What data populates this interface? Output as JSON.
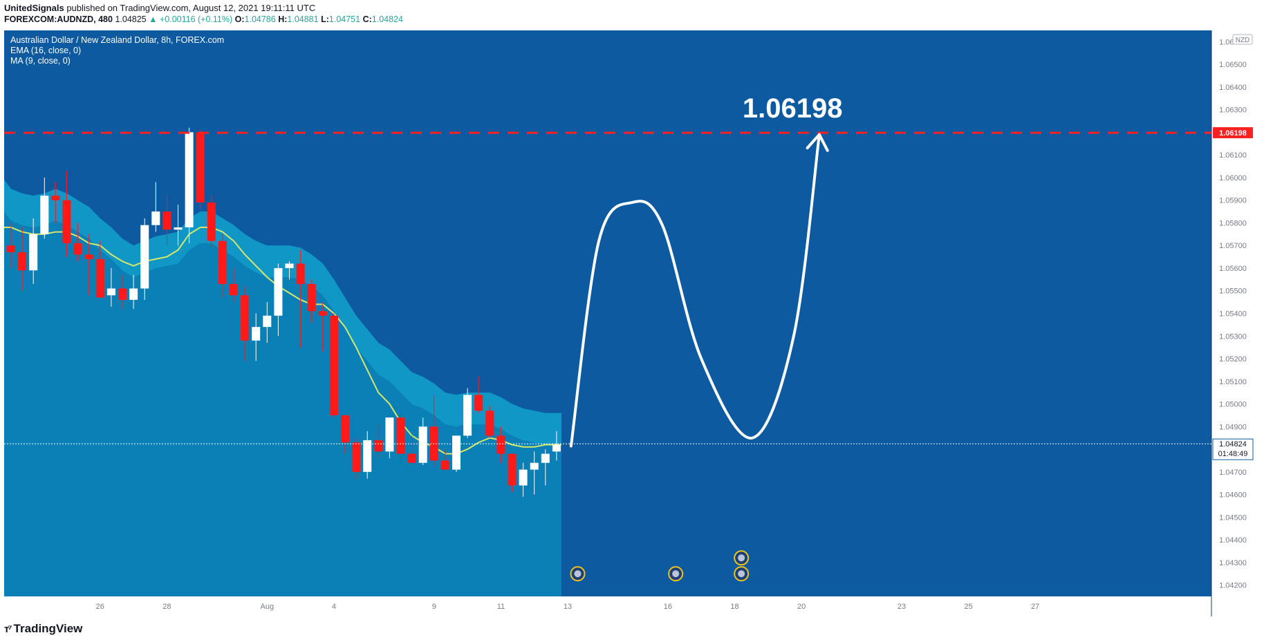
{
  "header": {
    "publisher": "UnitedSignals",
    "published_text": "published on TradingView.com, August 12, 2021 19:11:11 UTC",
    "symbol": "FOREXCOM:AUDNZD, 480",
    "last": "1.04825",
    "change": "+0.00116 (+0.11%)",
    "o_label": "O:",
    "o": "1.04786",
    "h_label": "H:",
    "h": "1.04881",
    "l_label": "L:",
    "l": "1.04751",
    "c_label": "C:",
    "c": "1.04824"
  },
  "legend": {
    "title": "Australian Dollar / New Zealand Dollar, 8h, FOREX.com",
    "ema": "EMA (16, close, 0)",
    "ma": "MA (9, close, 0)"
  },
  "currency_badge": "NZD",
  "target_label": "1.06198",
  "target_badge": "1.06198",
  "price_badge": "1.04824",
  "countdown": "01:48:49",
  "logo_text": "TradingView",
  "colors": {
    "background": "#0d5aa1",
    "area_fill": "#0a80b6",
    "band_fill": "#1197c5",
    "ema_line": "#d6e86a",
    "up_candle": "#ffffff",
    "down_candle": "#ff1a1a",
    "target_line": "#ff2020",
    "projection": "#ffffff"
  },
  "chart_data": {
    "type": "candlestick",
    "y_axis": {
      "min": 1.0415,
      "max": 1.0665,
      "ticks": [
        "1.04200",
        "1.04300",
        "1.04400",
        "1.04500",
        "1.04600",
        "1.04700",
        "1.04800",
        "1.04900",
        "1.05000",
        "1.05100",
        "1.05200",
        "1.05300",
        "1.05400",
        "1.05500",
        "1.05600",
        "1.05700",
        "1.05800",
        "1.05900",
        "1.06000",
        "1.06100",
        "1.06200",
        "1.06300",
        "1.06400",
        "1.06500",
        "1.06600"
      ]
    },
    "x_ticks": [
      {
        "label": "23",
        "bar": -1
      },
      {
        "label": "26",
        "bar": 8
      },
      {
        "label": "28",
        "bar": 14
      },
      {
        "label": "Aug",
        "bar": 23
      },
      {
        "label": "4",
        "bar": 29
      },
      {
        "label": "9",
        "bar": 38
      },
      {
        "label": "11",
        "bar": 44
      },
      {
        "label": "13",
        "bar": 50
      },
      {
        "label": "16",
        "bar": 59
      },
      {
        "label": "18",
        "bar": 65
      },
      {
        "label": "20",
        "bar": 71
      },
      {
        "label": "23",
        "bar": 80
      },
      {
        "label": "25",
        "bar": 86
      },
      {
        "label": "27",
        "bar": 92
      }
    ],
    "candles": [
      {
        "o": 1.057,
        "h": 1.058,
        "l": 1.056,
        "c": 1.0567
      },
      {
        "o": 1.0567,
        "h": 1.0578,
        "l": 1.055,
        "c": 1.0559
      },
      {
        "o": 1.0559,
        "h": 1.0582,
        "l": 1.0553,
        "c": 1.0575
      },
      {
        "o": 1.0575,
        "h": 1.06,
        "l": 1.0573,
        "c": 1.0592
      },
      {
        "o": 1.0592,
        "h": 1.0598,
        "l": 1.058,
        "c": 1.059
      },
      {
        "o": 1.059,
        "h": 1.0603,
        "l": 1.0565,
        "c": 1.0571
      },
      {
        "o": 1.0571,
        "h": 1.058,
        "l": 1.0563,
        "c": 1.0566
      },
      {
        "o": 1.0566,
        "h": 1.0575,
        "l": 1.0548,
        "c": 1.0564
      },
      {
        "o": 1.0564,
        "h": 1.0572,
        "l": 1.0548,
        "c": 1.0547
      },
      {
        "o": 1.0548,
        "h": 1.056,
        "l": 1.0543,
        "c": 1.0551
      },
      {
        "o": 1.0551,
        "h": 1.0557,
        "l": 1.0542,
        "c": 1.0546
      },
      {
        "o": 1.0546,
        "h": 1.0557,
        "l": 1.0542,
        "c": 1.0551
      },
      {
        "o": 1.0551,
        "h": 1.0582,
        "l": 1.0546,
        "c": 1.0579
      },
      {
        "o": 1.0579,
        "h": 1.0598,
        "l": 1.0576,
        "c": 1.0585
      },
      {
        "o": 1.0585,
        "h": 1.0592,
        "l": 1.057,
        "c": 1.0577
      },
      {
        "o": 1.0577,
        "h": 1.0588,
        "l": 1.057,
        "c": 1.0578
      },
      {
        "o": 1.0578,
        "h": 1.0622,
        "l": 1.0571,
        "c": 1.062
      },
      {
        "o": 1.062,
        "h": 1.0621,
        "l": 1.0586,
        "c": 1.0589
      },
      {
        "o": 1.0589,
        "h": 1.0592,
        "l": 1.0569,
        "c": 1.0572
      },
      {
        "o": 1.0572,
        "h": 1.0575,
        "l": 1.0547,
        "c": 1.0553
      },
      {
        "o": 1.0553,
        "h": 1.056,
        "l": 1.0545,
        "c": 1.0548
      },
      {
        "o": 1.0548,
        "h": 1.0552,
        "l": 1.0519,
        "c": 1.0528
      },
      {
        "o": 1.0528,
        "h": 1.054,
        "l": 1.0519,
        "c": 1.0534
      },
      {
        "o": 1.0534,
        "h": 1.0545,
        "l": 1.0527,
        "c": 1.0539
      },
      {
        "o": 1.0539,
        "h": 1.0562,
        "l": 1.053,
        "c": 1.056
      },
      {
        "o": 1.056,
        "h": 1.0563,
        "l": 1.0555,
        "c": 1.0562
      },
      {
        "o": 1.0562,
        "h": 1.0568,
        "l": 1.0525,
        "c": 1.0553
      },
      {
        "o": 1.0553,
        "h": 1.0555,
        "l": 1.0536,
        "c": 1.0541
      },
      {
        "o": 1.0541,
        "h": 1.0545,
        "l": 1.0523,
        "c": 1.0539
      },
      {
        "o": 1.0539,
        "h": 1.054,
        "l": 1.0494,
        "c": 1.0495
      },
      {
        "o": 1.0495,
        "h": 1.0495,
        "l": 1.0478,
        "c": 1.0483
      },
      {
        "o": 1.0483,
        "h": 1.0485,
        "l": 1.0467,
        "c": 1.047
      },
      {
        "o": 1.047,
        "h": 1.0488,
        "l": 1.0467,
        "c": 1.0484
      },
      {
        "o": 1.0484,
        "h": 1.0491,
        "l": 1.0476,
        "c": 1.0479
      },
      {
        "o": 1.0479,
        "h": 1.0494,
        "l": 1.0476,
        "c": 1.0494
      },
      {
        "o": 1.0494,
        "h": 1.0497,
        "l": 1.0473,
        "c": 1.0478
      },
      {
        "o": 1.0478,
        "h": 1.0486,
        "l": 1.0473,
        "c": 1.0474
      },
      {
        "o": 1.0474,
        "h": 1.0494,
        "l": 1.0473,
        "c": 1.049
      },
      {
        "o": 1.049,
        "h": 1.0504,
        "l": 1.0472,
        "c": 1.0475
      },
      {
        "o": 1.0475,
        "h": 1.048,
        "l": 1.0471,
        "c": 1.0471
      },
      {
        "o": 1.0471,
        "h": 1.0486,
        "l": 1.047,
        "c": 1.0486
      },
      {
        "o": 1.0486,
        "h": 1.0507,
        "l": 1.0485,
        "c": 1.0504
      },
      {
        "o": 1.0504,
        "h": 1.0512,
        "l": 1.0496,
        "c": 1.0497
      },
      {
        "o": 1.0497,
        "h": 1.0499,
        "l": 1.0485,
        "c": 1.0486
      },
      {
        "o": 1.0486,
        "h": 1.049,
        "l": 1.0474,
        "c": 1.0478
      },
      {
        "o": 1.0478,
        "h": 1.0478,
        "l": 1.0461,
        "c": 1.0464
      },
      {
        "o": 1.0464,
        "h": 1.0474,
        "l": 1.0459,
        "c": 1.0471
      },
      {
        "o": 1.0471,
        "h": 1.0479,
        "l": 1.046,
        "c": 1.0474
      },
      {
        "o": 1.0474,
        "h": 1.048,
        "l": 1.0464,
        "c": 1.0478
      },
      {
        "o": 1.0479,
        "h": 1.0488,
        "l": 1.0475,
        "c": 1.0482
      }
    ],
    "ema16": [
      1.0585,
      1.0583,
      1.0582,
      1.0583,
      1.0585,
      1.0583,
      1.058,
      1.0577,
      1.0572,
      1.0568,
      1.0563,
      1.056,
      1.0562,
      1.0564,
      1.0565,
      1.0566,
      1.0572,
      1.0575,
      1.0575,
      1.0572,
      1.0569,
      1.0565,
      1.0562,
      1.056,
      1.056,
      1.056,
      1.0559,
      1.0556,
      1.0552,
      1.0545,
      1.0537,
      1.0529,
      1.0523,
      1.0517,
      1.0514,
      1.0509,
      1.0504,
      1.0502,
      1.0499,
      1.0495,
      1.0494,
      1.0495,
      1.0495,
      1.0495,
      1.0493,
      1.049,
      1.0488,
      1.0487,
      1.0486,
      1.0486
    ],
    "ma9": [
      1.0578,
      1.0576,
      1.0575,
      1.0575,
      1.0576,
      1.0576,
      1.0574,
      1.0571,
      1.057,
      1.0566,
      1.0563,
      1.0561,
      1.0563,
      1.0564,
      1.0565,
      1.0568,
      1.0575,
      1.0578,
      1.0578,
      1.0576,
      1.0572,
      1.0566,
      1.0561,
      1.0556,
      1.0552,
      1.0549,
      1.0546,
      1.0544,
      1.0544,
      1.054,
      1.0534,
      1.0525,
      1.0515,
      1.0505,
      1.05,
      1.0492,
      1.0486,
      1.0483,
      1.0481,
      1.0478,
      1.0478,
      1.048,
      1.0483,
      1.0485,
      1.0484,
      1.0482,
      1.0481,
      1.0481,
      1.0482,
      1.0482
    ],
    "target_price": 1.06198,
    "current_price": 1.04824,
    "projection": [
      {
        "bar": 50.3,
        "price": 1.04814
      },
      {
        "bar": 52.8,
        "price": 1.0572
      },
      {
        "bar": 55.8,
        "price": 1.0589
      },
      {
        "bar": 58.5,
        "price": 1.0579
      },
      {
        "bar": 62.0,
        "price": 1.052
      },
      {
        "bar": 66.6,
        "price": 1.0485
      },
      {
        "bar": 70.3,
        "price": 1.053
      },
      {
        "bar": 72.6,
        "price": 1.0619
      }
    ],
    "events": [
      {
        "bar": 50.9,
        "price": 1.0425
      },
      {
        "bar": 59.7,
        "price": 1.0425
      },
      {
        "bar": 65.6,
        "price": 1.0432
      },
      {
        "bar": 65.6,
        "price": 1.0425
      }
    ]
  }
}
